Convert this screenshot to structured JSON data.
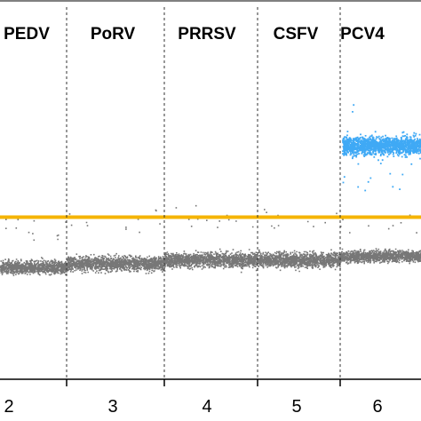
{
  "chart_data": {
    "type": "scatter",
    "title": "",
    "xlabel": "",
    "ylabel": "",
    "grid": false,
    "legend": "none",
    "panels": [
      {
        "label": "PEDV",
        "tick": "2",
        "x_range": [
          0,
          1
        ],
        "colored_positive": false,
        "gray_center": 0.7,
        "gray_spread": 0.04
      },
      {
        "label": "PoRV",
        "tick": "3",
        "x_range": [
          1,
          2
        ],
        "colored_positive": false,
        "gray_center": 0.69,
        "gray_spread": 0.045
      },
      {
        "label": "PRRSV",
        "tick": "4",
        "x_range": [
          2,
          3
        ],
        "colored_positive": false,
        "gray_center": 0.68,
        "gray_spread": 0.045
      },
      {
        "label": "CSFV",
        "tick": "5",
        "x_range": [
          3,
          4
        ],
        "colored_positive": false,
        "gray_center": 0.68,
        "gray_spread": 0.045
      },
      {
        "label": "PCV4",
        "tick": "6",
        "x_range": [
          4,
          5
        ],
        "colored_positive": true,
        "gray_center": 0.67,
        "gray_spread": 0.035,
        "positive_center": 0.37,
        "positive_spread": 0.05
      }
    ],
    "series": [
      {
        "role": "positive_droplets",
        "color": "#3fa9f5"
      },
      {
        "role": "negative_droplets",
        "color": "#777777"
      },
      {
        "role": "threshold",
        "color": "#f5b400",
        "y": 0.565
      }
    ],
    "axis_range_normalized": [
      0,
      1
    ]
  }
}
